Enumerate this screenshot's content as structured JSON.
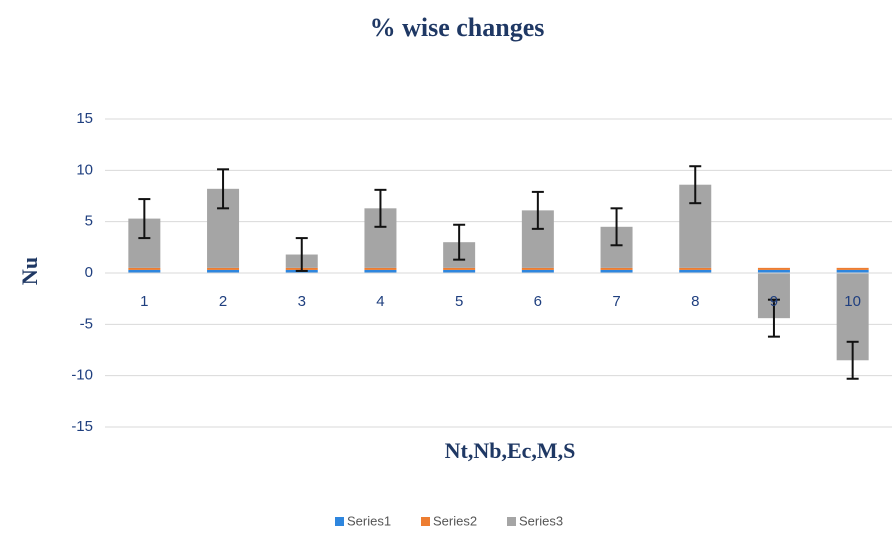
{
  "chart_data": {
    "type": "bar",
    "stacked": true,
    "title": "% wise changes",
    "x_label": "Nt,Nb,Ec,M,S",
    "y_label": "Nu",
    "categories": [
      "1",
      "2",
      "3",
      "4",
      "5",
      "6",
      "7",
      "8",
      "9",
      "10"
    ],
    "series": [
      {
        "name": "Series1",
        "color": "#2e86de",
        "values": [
          0.3,
          0.3,
          0.3,
          0.3,
          0.3,
          0.3,
          0.3,
          0.3,
          0.3,
          0.3
        ]
      },
      {
        "name": "Series2",
        "color": "#ed7d31",
        "values": [
          0.2,
          0.2,
          0.2,
          0.2,
          0.2,
          0.2,
          0.2,
          0.2,
          0.2,
          0.2
        ]
      },
      {
        "name": "Series3",
        "color": "#a5a5a5",
        "values": [
          4.8,
          7.7,
          1.3,
          5.8,
          2.5,
          5.6,
          4.0,
          8.1,
          -4.4,
          -8.5
        ],
        "errors": [
          1.9,
          1.9,
          1.6,
          1.8,
          1.7,
          1.8,
          1.8,
          1.8,
          1.8,
          1.8
        ]
      }
    ],
    "ylim": [
      -15,
      15
    ],
    "yticks": [
      -15,
      -10,
      -5,
      0,
      5,
      10,
      15
    ],
    "grid": true,
    "legend": "bottom"
  }
}
